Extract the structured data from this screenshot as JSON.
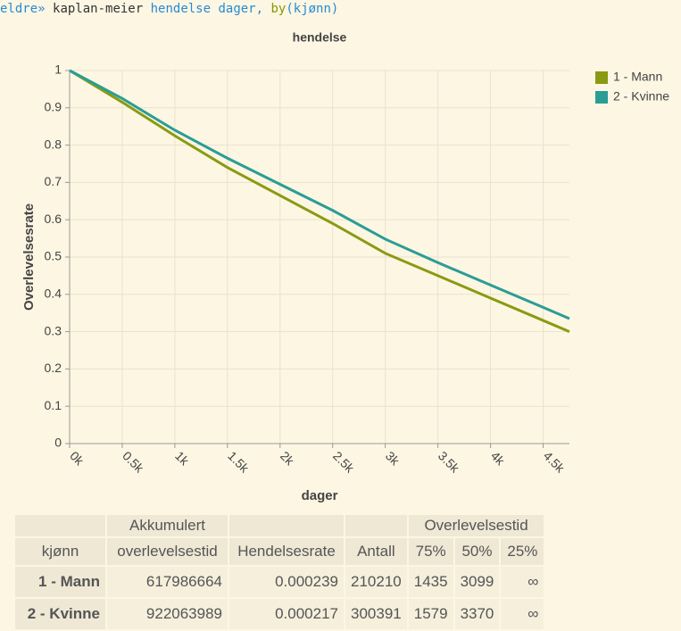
{
  "command": [
    "eldre»",
    "kaplan-meier",
    "hendelse dager,",
    "by",
    "(kjønn)"
  ],
  "chart_data": {
    "type": "line",
    "title": "hendelse",
    "x_label": "dager",
    "y_label": "Overlevelsesrate",
    "x": [
      0,
      500,
      1000,
      1500,
      2000,
      2500,
      3000,
      3500,
      4000,
      4500,
      4750
    ],
    "series": [
      {
        "name": "1 - Mann",
        "color": "#8a9a12",
        "values": [
          1,
          0.915,
          0.825,
          0.74,
          0.665,
          0.59,
          0.51,
          0.45,
          0.39,
          0.33,
          0.3
        ]
      },
      {
        "name": "2 - Kvinne",
        "color": "#2a9d95",
        "values": [
          1,
          0.925,
          0.84,
          0.765,
          0.695,
          0.625,
          0.548,
          0.485,
          0.425,
          0.365,
          0.335
        ]
      }
    ],
    "xlim": [
      0,
      4750
    ],
    "ylim": [
      0,
      1
    ],
    "xticks": [
      {
        "value": 0,
        "label": "0k"
      },
      {
        "value": 500,
        "label": "0.5k"
      },
      {
        "value": 1000,
        "label": "1k"
      },
      {
        "value": 1500,
        "label": "1.5k"
      },
      {
        "value": 2000,
        "label": "2k"
      },
      {
        "value": 2500,
        "label": "2.5k"
      },
      {
        "value": 3000,
        "label": "3k"
      },
      {
        "value": 3500,
        "label": "3.5k"
      },
      {
        "value": 4000,
        "label": "4k"
      },
      {
        "value": 4500,
        "label": "4.5k"
      }
    ],
    "yticks": [
      0,
      0.1,
      0.2,
      0.3,
      0.4,
      0.5,
      0.6,
      0.7,
      0.8,
      0.9,
      1
    ],
    "grid": true,
    "legend": "right"
  },
  "table": {
    "header_top": [
      "Akkumulert",
      "Overlevelsestid"
    ],
    "header": [
      "kjønn",
      "overlevelsestid",
      "Hendelsesrate",
      "Antall",
      "75%",
      "50%",
      "25%"
    ],
    "rows": [
      [
        "1 - Mann",
        "617986664",
        "0.000239",
        "210210",
        "1435",
        "3099",
        "∞"
      ],
      [
        "2 - Kvinne",
        "922063989",
        "0.000217",
        "300391",
        "1579",
        "3370",
        "∞"
      ]
    ]
  }
}
